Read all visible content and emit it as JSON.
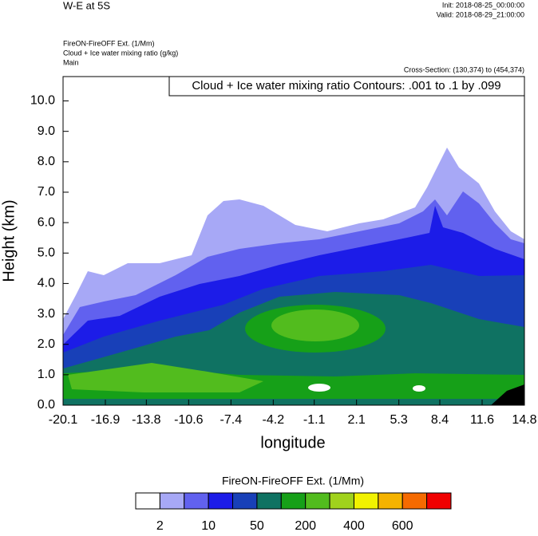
{
  "header": {
    "title": "W-E at 5S",
    "init": "Init: 2018-08-25_00:00:00",
    "valid": "Valid: 2018-08-29_21:00:00",
    "lines": [
      "FireON-FireOFF Ext.   (1/Mm)",
      "Cloud + Ice water mixing ratio   (g/kg)",
      "Main"
    ],
    "cross_section": "Cross-Section: (130,374) to (454,374)"
  },
  "chart_data": {
    "type": "contour",
    "annotation": "Cloud + Ice water mixing ratio Contours: .001 to .1 by .099",
    "xlabel": "longitude",
    "ylabel": "Height (km)",
    "xlim": [
      -20.1,
      14.8
    ],
    "xticks": [
      -20.1,
      -16.9,
      -13.8,
      -10.6,
      -7.4,
      -4.2,
      -1.1,
      2.1,
      5.3,
      8.4,
      11.6,
      14.8
    ],
    "ylim": [
      0,
      10.8
    ],
    "yticks": [
      {
        "value": 0,
        "label": "0.0"
      },
      {
        "value": 1,
        "label": "1.0"
      },
      {
        "value": 2,
        "label": "2.0"
      },
      {
        "value": 3,
        "label": "3.0"
      },
      {
        "value": 4,
        "label": "4.0"
      },
      {
        "value": 5,
        "label": "5.0"
      },
      {
        "value": 6,
        "label": "6.0"
      },
      {
        "value": 7,
        "label": "7.0"
      },
      {
        "value": 8,
        "label": "8.0"
      },
      {
        "value": 9,
        "label": "9.0"
      },
      {
        "value": 10,
        "label": "10.0"
      }
    ],
    "colorbar": {
      "title": "FireON-FireOFF Ext.  (1/Mm)",
      "colors": [
        "#ffffff",
        "#a7a8f6",
        "#6161ef",
        "#1c1ce8",
        "#1840b8",
        "#0f7262",
        "#16a018",
        "#52bc1e",
        "#a0d21c",
        "#f2f200",
        "#f5b300",
        "#f56a00",
        "#f00000"
      ],
      "labels": [
        "2",
        "10",
        "50",
        "200",
        "400",
        "600"
      ]
    }
  }
}
